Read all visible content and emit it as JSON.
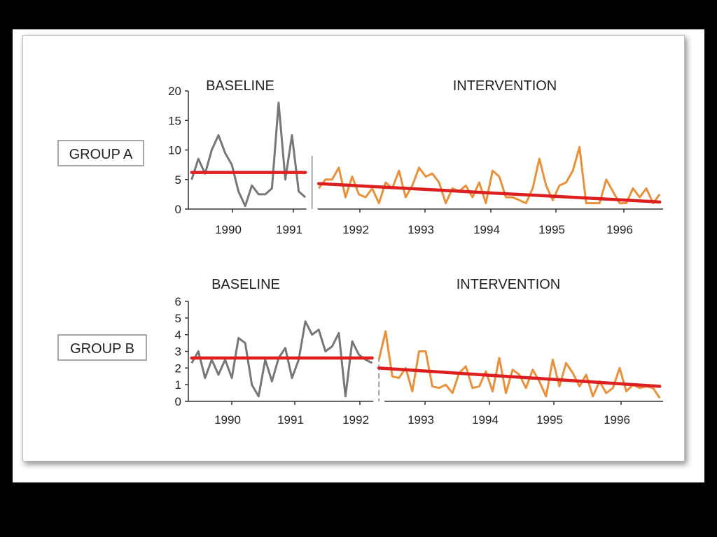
{
  "colors": {
    "baseline": "#777777",
    "intervention": "#e8913a",
    "trend": "#dd1f1f"
  },
  "chart_data": [
    {
      "type": "line",
      "group_label": "GROUP A",
      "phase_labels": [
        "BASELINE",
        "INTERVENTION"
      ],
      "ylim": [
        0,
        20
      ],
      "yticks": [
        0,
        5,
        10,
        15,
        20
      ],
      "xticks": [
        "1990",
        "1991",
        "1992",
        "1993",
        "1994",
        "1995",
        "1996"
      ],
      "xlim": [
        1989.55,
        1996.65
      ],
      "phase_change": 1991.4,
      "series": [
        {
          "phase": "baseline",
          "x": [
            1989.6,
            1989.7,
            1989.8,
            1989.9,
            1990.0,
            1990.1,
            1990.2,
            1990.3,
            1990.4,
            1990.5,
            1990.6,
            1990.7,
            1990.8,
            1990.9,
            1991.0,
            1991.1,
            1991.2,
            1991.3
          ],
          "y": [
            5,
            8.5,
            6,
            10,
            12.5,
            9.5,
            7.5,
            3,
            0.5,
            4,
            2.5,
            2.5,
            3.5,
            18,
            5,
            12.5,
            3,
            2
          ],
          "trend_y": [
            6.2,
            6.2
          ]
        },
        {
          "phase": "intervention",
          "x": [
            1991.5,
            1991.6,
            1991.7,
            1991.8,
            1991.9,
            1992.0,
            1992.1,
            1992.2,
            1992.3,
            1992.4,
            1992.5,
            1992.6,
            1992.7,
            1992.8,
            1992.9,
            1993.0,
            1993.1,
            1993.2,
            1993.3,
            1993.4,
            1993.5,
            1993.6,
            1993.7,
            1993.8,
            1993.9,
            1994.0,
            1994.1,
            1994.2,
            1994.3,
            1994.4,
            1994.5,
            1994.6,
            1994.7,
            1994.8,
            1994.9,
            1995.0,
            1995.1,
            1995.2,
            1995.3,
            1995.4,
            1995.5,
            1995.6,
            1995.7,
            1995.8,
            1995.9,
            1996.0,
            1996.1,
            1996.2,
            1996.3,
            1996.4,
            1996.5,
            1996.6
          ],
          "y": [
            3.5,
            5,
            5,
            7,
            2,
            5.5,
            2.5,
            2,
            3.5,
            1,
            4.5,
            3.5,
            6.5,
            2,
            4,
            7,
            5.5,
            6,
            4.5,
            1,
            3.5,
            3,
            4,
            2,
            4.5,
            1,
            6.5,
            5.5,
            2,
            2,
            1.5,
            1,
            3.5,
            8.5,
            4,
            1.5,
            4,
            4.5,
            6.5,
            10.5,
            1,
            1,
            1,
            5,
            3,
            1,
            1,
            3.5,
            2,
            3.5,
            1,
            2.5
          ],
          "trend_y": [
            4.3,
            1.2
          ]
        }
      ]
    },
    {
      "type": "line",
      "group_label": "GROUP B",
      "phase_labels": [
        "BASELINE",
        "INTERVENTION"
      ],
      "ylim": [
        0,
        6
      ],
      "yticks": [
        0,
        1,
        2,
        3,
        4,
        5,
        6
      ],
      "xticks": [
        "1990",
        "1991",
        "1992",
        "1993",
        "1994",
        "1995",
        "1996"
      ],
      "xlim": [
        1989.55,
        1996.65
      ],
      "phase_change": 1992.4,
      "series": [
        {
          "phase": "baseline",
          "x": [
            1989.6,
            1989.7,
            1989.8,
            1989.9,
            1990.0,
            1990.1,
            1990.2,
            1990.3,
            1990.4,
            1990.5,
            1990.6,
            1990.7,
            1990.8,
            1990.9,
            1991.0,
            1991.1,
            1991.2,
            1991.3,
            1991.4,
            1991.5,
            1991.6,
            1991.7,
            1991.8,
            1991.9,
            1992.0,
            1992.1,
            1992.2,
            1992.3
          ],
          "y": [
            2.3,
            3,
            1.4,
            2.5,
            1.6,
            2.5,
            1.4,
            3.8,
            3.5,
            1,
            0.3,
            2.5,
            1.2,
            2.6,
            3.2,
            1.4,
            2.5,
            4.8,
            4,
            4.3,
            3,
            3.3,
            4.1,
            0.3,
            3.6,
            2.8,
            2.5,
            2.3
          ],
          "trend_y": [
            2.6,
            2.6
          ]
        },
        {
          "phase": "intervention",
          "x": [
            1992.4,
            1992.5,
            1992.6,
            1992.7,
            1992.8,
            1992.9,
            1993.0,
            1993.1,
            1993.2,
            1993.3,
            1993.4,
            1993.5,
            1993.6,
            1993.7,
            1993.8,
            1993.9,
            1994.0,
            1994.1,
            1994.2,
            1994.3,
            1994.4,
            1994.5,
            1994.6,
            1994.7,
            1994.8,
            1994.9,
            1995.0,
            1995.1,
            1995.2,
            1995.3,
            1995.4,
            1995.5,
            1995.6,
            1995.7,
            1995.8,
            1995.9,
            1996.0,
            1996.1,
            1996.2,
            1996.3,
            1996.4,
            1996.5,
            1996.6
          ],
          "y": [
            2.5,
            4.2,
            1.5,
            1.4,
            2,
            0.6,
            3,
            3,
            0.9,
            0.8,
            1,
            0.5,
            1.7,
            2.1,
            0.8,
            0.9,
            1.8,
            0.6,
            2.6,
            0.5,
            1.9,
            1.6,
            0.8,
            1.9,
            1.2,
            0.3,
            2.5,
            0.9,
            2.3,
            1.7,
            0.9,
            1.6,
            0.3,
            1.2,
            0.5,
            0.8,
            2,
            0.6,
            1,
            0.8,
            0.9,
            0.8,
            0.2
          ],
          "trend_y": [
            2.0,
            0.9
          ]
        }
      ]
    }
  ]
}
